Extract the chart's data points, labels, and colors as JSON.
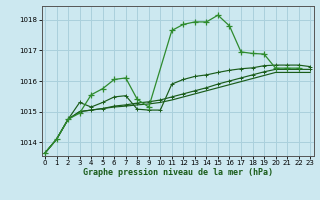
{
  "title": "Graphe pression niveau de la mer (hPa)",
  "bg": "#cce8f0",
  "grid_color": "#aad0dc",
  "dark_green": "#1a5c1a",
  "light_green": "#2e8b2e",
  "xlim": [
    -0.3,
    23.3
  ],
  "ylim": [
    1013.55,
    1018.45
  ],
  "yticks": [
    1014,
    1015,
    1016,
    1017,
    1018
  ],
  "xticks": [
    0,
    1,
    2,
    3,
    4,
    5,
    6,
    7,
    8,
    9,
    10,
    11,
    12,
    13,
    14,
    15,
    16,
    17,
    18,
    19,
    20,
    21,
    22,
    23
  ],
  "s1_x": [
    0,
    1,
    2,
    3,
    4,
    5,
    6,
    7,
    8,
    9,
    11,
    12,
    13,
    14,
    15,
    16,
    17,
    18,
    19,
    20,
    21,
    22
  ],
  "s1_y": [
    1013.65,
    1014.1,
    1014.75,
    1014.95,
    1015.55,
    1015.75,
    1016.05,
    1016.1,
    1015.4,
    1015.15,
    1017.65,
    1017.85,
    1017.93,
    1017.93,
    1018.15,
    1017.8,
    1016.95,
    1016.9,
    1016.88,
    1016.42,
    1016.42,
    1016.42
  ],
  "s2_x": [
    0,
    1,
    2,
    3,
    4,
    5,
    6,
    7,
    8,
    9,
    10,
    11,
    12,
    13,
    14,
    15,
    16,
    17,
    18,
    19,
    20,
    21,
    22,
    23
  ],
  "s2_y": [
    1013.65,
    1014.1,
    1014.75,
    1015.3,
    1015.15,
    1015.3,
    1015.48,
    1015.52,
    1015.08,
    1015.05,
    1015.05,
    1015.9,
    1016.05,
    1016.15,
    1016.2,
    1016.28,
    1016.35,
    1016.4,
    1016.43,
    1016.5,
    1016.52,
    1016.52,
    1016.52,
    1016.47
  ],
  "s3_x": [
    0,
    1,
    2,
    3,
    4,
    5,
    6,
    7,
    8,
    9,
    10,
    11,
    12,
    13,
    14,
    15,
    16,
    17,
    18,
    19,
    20,
    21,
    22,
    23
  ],
  "s3_y": [
    1013.65,
    1014.1,
    1014.75,
    1015.0,
    1015.05,
    1015.1,
    1015.18,
    1015.22,
    1015.28,
    1015.32,
    1015.38,
    1015.48,
    1015.58,
    1015.68,
    1015.78,
    1015.9,
    1016.0,
    1016.1,
    1016.2,
    1016.3,
    1016.38,
    1016.38,
    1016.38,
    1016.38
  ],
  "s4_x": [
    0,
    1,
    2,
    3,
    4,
    5,
    6,
    7,
    8,
    9,
    10,
    11,
    12,
    13,
    14,
    15,
    16,
    17,
    18,
    19,
    20,
    21,
    22,
    23
  ],
  "s4_y": [
    1013.65,
    1014.1,
    1014.75,
    1015.0,
    1015.05,
    1015.1,
    1015.15,
    1015.18,
    1015.22,
    1015.25,
    1015.3,
    1015.38,
    1015.48,
    1015.58,
    1015.68,
    1015.78,
    1015.88,
    1015.98,
    1016.08,
    1016.18,
    1016.28,
    1016.28,
    1016.28,
    1016.28
  ]
}
